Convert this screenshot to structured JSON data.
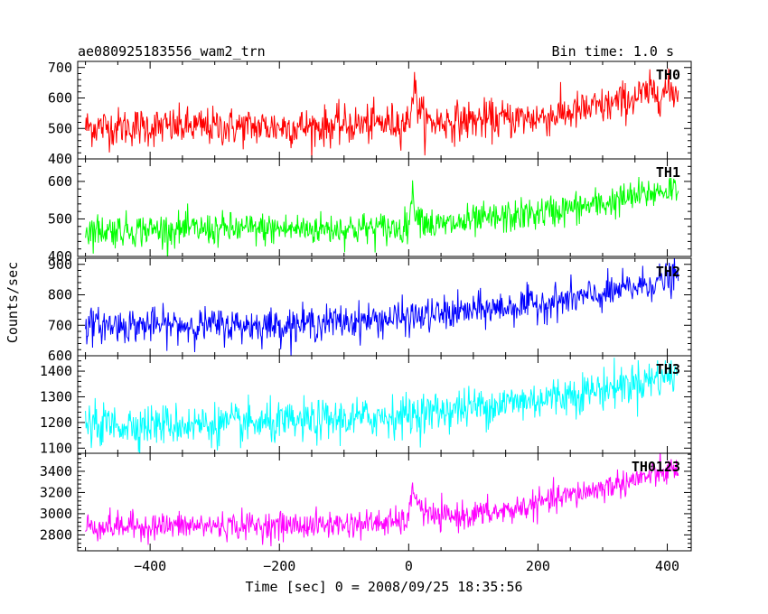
{
  "header": {
    "left_title": "ae080925183556_wam2_trn",
    "right_title": "Bin time: 1.0 s"
  },
  "axes": {
    "ylabel": "Counts/sec",
    "xlabel": "Time [sec] 0 = 2008/09/25 18:35:56"
  },
  "chart_data": {
    "type": "line",
    "title": "ae080925183556_wam2_trn",
    "subtitle": "Bin time: 1.0 s",
    "xlabel": "Time [sec] 0 = 2008/09/25 18:35:56",
    "ylabel": "Counts/sec",
    "xlim": [
      -512,
      437
    ],
    "x_ticks": [
      -400,
      -200,
      0,
      200,
      400
    ],
    "grid": false,
    "bin_time_s": 1.0,
    "time_range": [
      -500,
      417
    ],
    "panels": [
      {
        "name": "TH0",
        "color": "#ff0000",
        "ylim": [
          400,
          720
        ],
        "y_ticks": [
          400,
          500,
          600,
          700
        ],
        "noise_sd": 32,
        "trend": [
          [
            -500,
            505
          ],
          [
            -150,
            505
          ],
          [
            -10,
            520
          ],
          [
            0,
            520
          ],
          [
            8,
            640
          ],
          [
            14,
            580
          ],
          [
            25,
            520
          ],
          [
            200,
            535
          ],
          [
            300,
            570
          ],
          [
            380,
            620
          ],
          [
            417,
            620
          ]
        ]
      },
      {
        "name": "TH1",
        "color": "#00ff00",
        "ylim": [
          400,
          660
        ],
        "y_ticks": [
          400,
          500,
          600
        ],
        "noise_sd": 22,
        "trend": [
          [
            -500,
            470
          ],
          [
            -10,
            475
          ],
          [
            0,
            490
          ],
          [
            5,
            560
          ],
          [
            15,
            510
          ],
          [
            40,
            480
          ],
          [
            200,
            515
          ],
          [
            300,
            540
          ],
          [
            417,
            585
          ]
        ]
      },
      {
        "name": "TH2",
        "color": "#0000ff",
        "ylim": [
          600,
          920
        ],
        "y_ticks": [
          600,
          700,
          800,
          900
        ],
        "noise_sd": 28,
        "trend": [
          [
            -500,
            700
          ],
          [
            -200,
            700
          ],
          [
            0,
            725
          ],
          [
            200,
            770
          ],
          [
            300,
            800
          ],
          [
            417,
            860
          ]
        ]
      },
      {
        "name": "TH3",
        "color": "#00ffff",
        "ylim": [
          1080,
          1460
        ],
        "y_ticks": [
          1100,
          1200,
          1300,
          1400
        ],
        "noise_sd": 40,
        "trend": [
          [
            -500,
            1190
          ],
          [
            -200,
            1195
          ],
          [
            0,
            1230
          ],
          [
            200,
            1290
          ],
          [
            300,
            1330
          ],
          [
            417,
            1390
          ]
        ]
      },
      {
        "name": "TH0123",
        "color": "#ff00ff",
        "ylim": [
          2650,
          3570
        ],
        "y_ticks": [
          2800,
          3000,
          3200,
          3400
        ],
        "noise_sd": 65,
        "trend": [
          [
            -500,
            2880
          ],
          [
            -150,
            2890
          ],
          [
            -10,
            2920
          ],
          [
            0,
            2960
          ],
          [
            8,
            3250
          ],
          [
            18,
            3050
          ],
          [
            40,
            2960
          ],
          [
            150,
            3020
          ],
          [
            250,
            3170
          ],
          [
            350,
            3320
          ],
          [
            417,
            3420
          ]
        ]
      }
    ]
  }
}
